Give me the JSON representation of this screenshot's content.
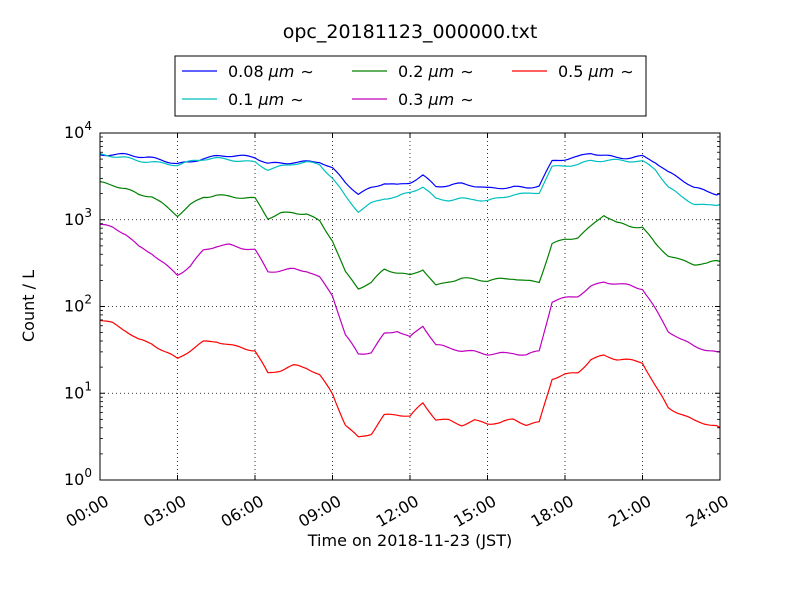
{
  "chart_data": {
    "type": "line",
    "title": "opc_20181123_000000.txt",
    "xlabel": "Time on 2018-11-23 (JST)",
    "ylabel": "Count / L",
    "xlim": [
      "00:00",
      "24:00"
    ],
    "ylim": [
      1,
      10000
    ],
    "yscale": "log",
    "grid": true,
    "legend_position": "top, above plot",
    "x_ticks": [
      "00:00",
      "03:00",
      "06:00",
      "09:00",
      "12:00",
      "15:00",
      "18:00",
      "21:00",
      "24:00"
    ],
    "y_ticks": [
      {
        "base": "10",
        "exp": "0"
      },
      {
        "base": "10",
        "exp": "1"
      },
      {
        "base": "10",
        "exp": "2"
      },
      {
        "base": "10",
        "exp": "3"
      },
      {
        "base": "10",
        "exp": "4"
      }
    ],
    "x": [
      "00:00",
      "00:30",
      "01:00",
      "01:30",
      "02:00",
      "02:30",
      "03:00",
      "03:30",
      "04:00",
      "04:30",
      "05:00",
      "05:30",
      "06:00",
      "06:30",
      "07:00",
      "07:30",
      "08:00",
      "08:30",
      "09:00",
      "09:30",
      "10:00",
      "10:30",
      "11:00",
      "11:30",
      "12:00",
      "12:30",
      "13:00",
      "13:30",
      "14:00",
      "14:30",
      "15:00",
      "15:30",
      "16:00",
      "16:30",
      "17:00",
      "17:30",
      "18:00",
      "18:30",
      "19:00",
      "19:30",
      "20:00",
      "20:30",
      "21:00",
      "21:30",
      "22:00",
      "22:30",
      "23:00",
      "23:30",
      "24:00"
    ],
    "series": [
      {
        "name": "0.08",
        "unit": "μm",
        "suffix": "∼",
        "color": "#0000ff",
        "values": [
          5600,
          5500,
          5400,
          5200,
          5100,
          4900,
          4600,
          4800,
          5200,
          5300,
          5300,
          5200,
          5100,
          4500,
          4600,
          4800,
          4800,
          4700,
          3800,
          2600,
          1900,
          2300,
          2700,
          2600,
          2800,
          3300,
          2400,
          2400,
          2500,
          2400,
          2300,
          2400,
          2500,
          2400,
          2500,
          4600,
          4800,
          5100,
          5800,
          5600,
          5400,
          5400,
          5500,
          4600,
          3400,
          2800,
          2300,
          2100,
          2000
        ]
      },
      {
        "name": "0.1",
        "unit": "μm",
        "suffix": "∼",
        "color": "#00bfbf",
        "values": [
          5500,
          5400,
          5300,
          5000,
          4800,
          4500,
          4200,
          4500,
          4800,
          5000,
          5000,
          4900,
          4800,
          3900,
          4100,
          4300,
          4400,
          4200,
          3000,
          1900,
          1300,
          1600,
          1800,
          1800,
          2000,
          2300,
          1700,
          1700,
          1800,
          1800,
          1700,
          1800,
          1900,
          1900,
          2000,
          4000,
          4300,
          4500,
          5000,
          4900,
          4800,
          4600,
          4500,
          3700,
          2400,
          1900,
          1600,
          1500,
          1500
        ]
      },
      {
        "name": "0.2",
        "unit": "μm",
        "suffix": "∼",
        "color": "#008000",
        "values": [
          2800,
          2600,
          2300,
          1900,
          1800,
          1400,
          1100,
          1500,
          1900,
          2000,
          1900,
          1800,
          1700,
          1000,
          1150,
          1200,
          1200,
          1000,
          600,
          250,
          160,
          180,
          260,
          240,
          230,
          280,
          180,
          200,
          210,
          200,
          190,
          200,
          210,
          200,
          200,
          550,
          600,
          620,
          800,
          1100,
          900,
          850,
          850,
          550,
          400,
          340,
          300,
          300,
          330
        ]
      },
      {
        "name": "0.3",
        "unit": "μm",
        "suffix": "∼",
        "color": "#bf00bf",
        "values": [
          860,
          780,
          660,
          480,
          420,
          320,
          240,
          300,
          440,
          480,
          490,
          460,
          450,
          260,
          270,
          280,
          260,
          210,
          130,
          45,
          28,
          30,
          50,
          55,
          45,
          60,
          35,
          32,
          30,
          30,
          29,
          30,
          30,
          28,
          30,
          110,
          120,
          130,
          170,
          200,
          190,
          180,
          160,
          90,
          50,
          40,
          35,
          32,
          30
        ]
      },
      {
        "name": "0.5",
        "unit": "μm",
        "suffix": "∼",
        "color": "#ff0000",
        "values": [
          70,
          65,
          55,
          43,
          38,
          30,
          24,
          30,
          38,
          40,
          37,
          35,
          32,
          17,
          18,
          20,
          19,
          16,
          10,
          4.5,
          3.2,
          3.5,
          5.5,
          5.5,
          5.2,
          7.5,
          5,
          5,
          4.5,
          5,
          4.5,
          4.5,
          4.8,
          4.2,
          4.5,
          15,
          17,
          18,
          25,
          27,
          24,
          23,
          22,
          12,
          7,
          6,
          5,
          4.5,
          4
        ]
      }
    ]
  }
}
